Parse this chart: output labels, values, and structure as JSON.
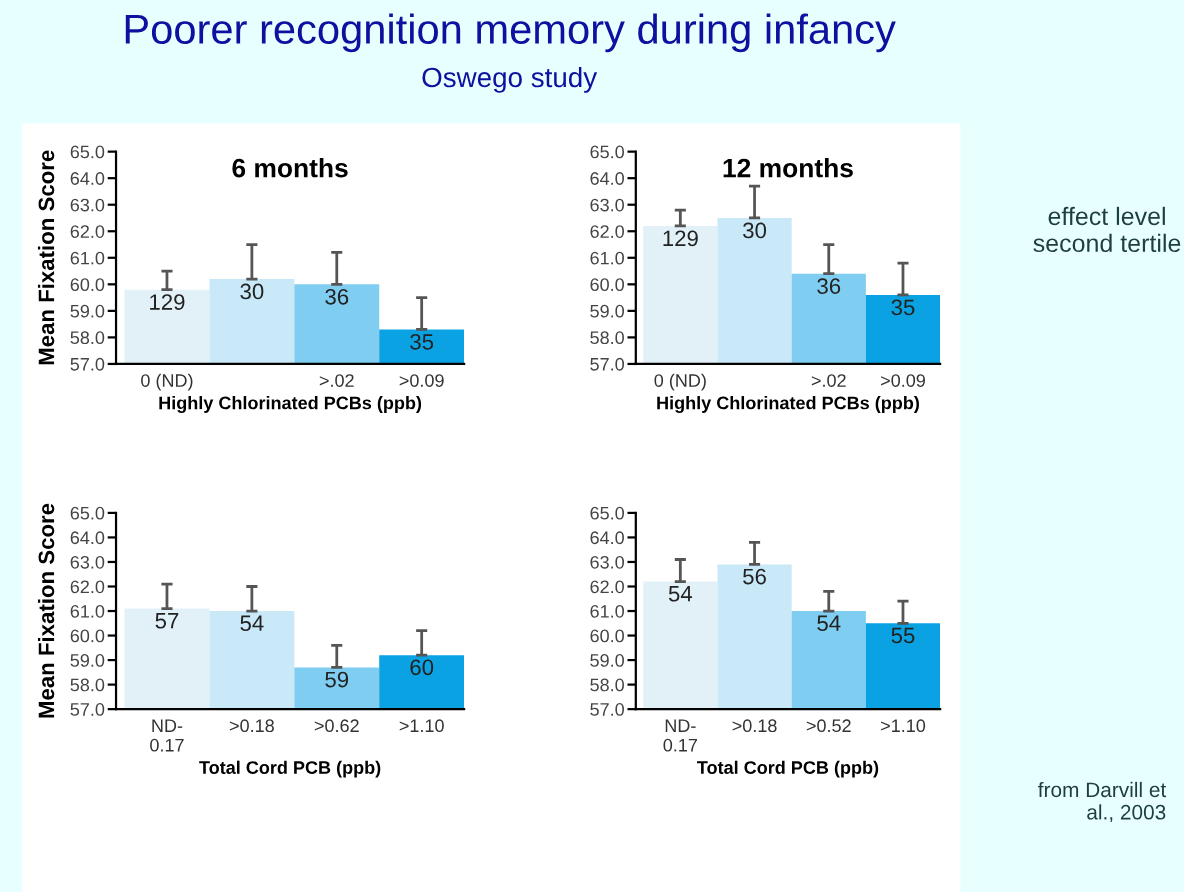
{
  "chart_data": [
    {
      "type": "bar",
      "title": "Poorer recognition memory during infancy",
      "subtitle": "Oswego study",
      "ylabel": "Mean Fixation Score",
      "xlabel": "Highly Chlorinated PCBs (ppb)",
      "annotations": [
        "6 months",
        {
          "text": "129",
          "x": "0 (ND)",
          "y": 59.8
        },
        {
          "text": "30",
          "y": 60.2
        },
        {
          "text": "36",
          "x": ">.02",
          "y": 60.0
        },
        {
          "text": "35",
          "x": ">0.09",
          "y": 58.3
        }
      ],
      "categories": [
        "0 (ND)",
        null,
        ">.02",
        ">0.09"
      ],
      "values": [
        59.8,
        60.2,
        60.0,
        58.3
      ],
      "errors": [
        [
          59.8,
          60.5
        ],
        [
          60.2,
          61.5
        ],
        [
          60.0,
          61.2
        ],
        [
          58.3,
          59.5
        ]
      ],
      "colors": [
        "#e2f1f8",
        "#c9e9f9",
        "#7fcdf1",
        "#0aa2e2"
      ],
      "ylim": [
        57,
        65
      ],
      "yticks": [
        {
          "value": 57,
          "label": "57.0"
        },
        {
          "value": 58,
          "label": "58.0"
        },
        {
          "value": 59,
          "label": "59.0"
        },
        {
          "value": 60,
          "label": "60.0"
        },
        {
          "value": 61,
          "label": "61.0"
        },
        {
          "value": 62,
          "label": "62.0"
        },
        {
          "value": 63,
          "label": "63.0"
        },
        {
          "value": 64,
          "label": "64.0"
        },
        {
          "value": 65,
          "label": "65.0"
        }
      ],
      "grid": false
    },
    {
      "type": "bar",
      "xlabel": "Highly Chlorinated PCBs (ppb)",
      "annotations": [
        "12 months",
        "effect level\nsecond tertile",
        {
          "text": "129",
          "x": "0 (ND)",
          "y": 62.2
        },
        {
          "text": "30",
          "y": 62.5
        },
        {
          "text": "36",
          "x": ">.02",
          "y": 60.4
        },
        {
          "text": "35",
          "x": ">0.09",
          "y": 59.6
        }
      ],
      "categories": [
        "0 (ND)",
        null,
        ">.02",
        ">0.09"
      ],
      "values": [
        62.2,
        62.5,
        60.4,
        59.6
      ],
      "errors": [
        [
          62.2,
          62.8
        ],
        [
          62.5,
          63.7
        ],
        [
          60.4,
          61.5
        ],
        [
          59.6,
          60.8
        ]
      ],
      "colors": [
        "#e2f1f8",
        "#c9e9f9",
        "#7fcdf1",
        "#0aa2e2"
      ],
      "ylim": [
        57,
        65
      ],
      "yticks": [
        {
          "value": 57,
          "label": "57.0"
        },
        {
          "value": 58,
          "label": "58.0"
        },
        {
          "value": 59,
          "label": "59.0"
        },
        {
          "value": 60,
          "label": "60.0"
        },
        {
          "value": 61,
          "label": "61.0"
        },
        {
          "value": 62,
          "label": "62.0"
        },
        {
          "value": 63,
          "label": "63.0"
        },
        {
          "value": 64,
          "label": "64.0"
        },
        {
          "value": 65,
          "label": "65.0"
        }
      ],
      "grid": false
    },
    {
      "type": "bar",
      "ylabel": "Mean Fixation Score",
      "xlabel": "Total Cord PCB (ppb)",
      "annotations": [
        {
          "text": "57",
          "x": "ND-\n0.17",
          "y": 61.1
        },
        {
          "text": "54",
          "x": ">0.18",
          "y": 61.0
        },
        {
          "text": "59",
          "x": ">0.62",
          "y": 58.7
        },
        {
          "text": "60",
          "x": ">1.10",
          "y": 59.2
        }
      ],
      "categories": [
        "ND-\n0.17",
        ">0.18",
        ">0.62",
        ">1.10"
      ],
      "values": [
        61.1,
        61.0,
        58.7,
        59.2
      ],
      "errors": [
        [
          61.1,
          62.1
        ],
        [
          61.0,
          62.0
        ],
        [
          58.7,
          59.6
        ],
        [
          59.2,
          60.2
        ]
      ],
      "colors": [
        "#e2f1f8",
        "#c9e9f9",
        "#7fcdf1",
        "#0aa2e2"
      ],
      "ylim": [
        57,
        65
      ],
      "yticks": [
        {
          "value": 57,
          "label": "57.0"
        },
        {
          "value": 58,
          "label": "58.0"
        },
        {
          "value": 59,
          "label": "59.0"
        },
        {
          "value": 60,
          "label": "60.0"
        },
        {
          "value": 61,
          "label": "61.0"
        },
        {
          "value": 62,
          "label": "62.0"
        },
        {
          "value": 63,
          "label": "63.0"
        },
        {
          "value": 64,
          "label": "64.0"
        },
        {
          "value": 65,
          "label": "65.0"
        }
      ],
      "grid": false
    },
    {
      "type": "bar",
      "xlabel": "Total Cord PCB (ppb)",
      "annotations": [
        "from Darvill et\nal., 2003",
        {
          "text": "54",
          "x": "ND-\n0.17",
          "y": 62.2
        },
        {
          "text": "56",
          "x": ">0.18",
          "y": 62.9
        },
        {
          "text": "54",
          "x": ">0.52",
          "y": 61.0
        },
        {
          "text": "55",
          "x": ">1.10",
          "y": 60.5
        }
      ],
      "categories": [
        "ND-\n0.17",
        ">0.18",
        ">0.52",
        ">1.10"
      ],
      "values": [
        62.2,
        62.9,
        61.0,
        60.5
      ],
      "errors": [
        [
          62.2,
          63.1
        ],
        [
          62.9,
          63.8
        ],
        [
          61.0,
          61.8
        ],
        [
          60.5,
          61.4
        ]
      ],
      "colors": [
        "#e2f1f8",
        "#c9e9f9",
        "#7fcdf1",
        "#0aa2e2"
      ],
      "ylim": [
        57,
        65
      ],
      "yticks": [
        {
          "value": 57,
          "label": "57.0"
        },
        {
          "value": 58,
          "label": "58.0"
        },
        {
          "value": 59,
          "label": "59.0"
        },
        {
          "value": 60,
          "label": "60.0"
        },
        {
          "value": 61,
          "label": "61.0"
        },
        {
          "value": 62,
          "label": "62.0"
        },
        {
          "value": 63,
          "label": "63.0"
        },
        {
          "value": 64,
          "label": "64.0"
        },
        {
          "value": 65,
          "label": "65.0"
        }
      ],
      "grid": false
    }
  ]
}
